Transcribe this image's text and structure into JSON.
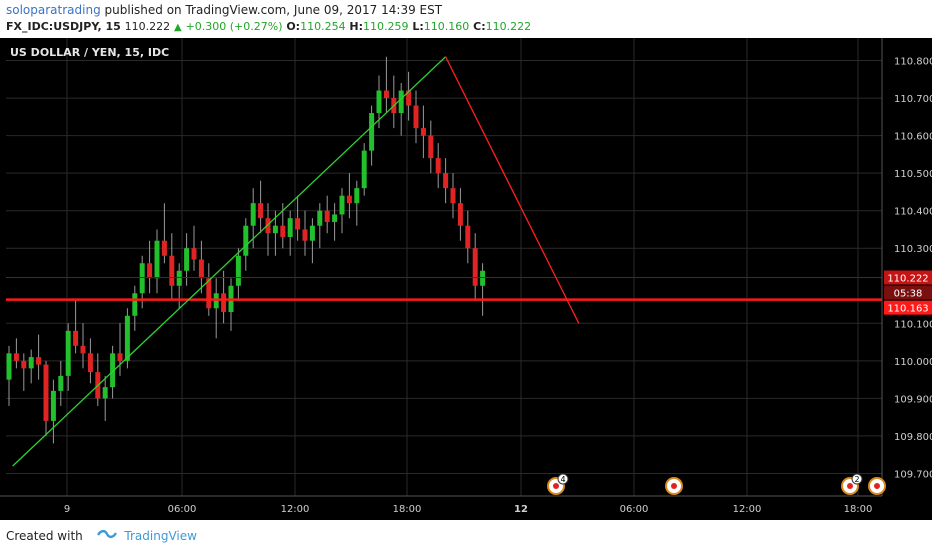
{
  "header": {
    "author": "soloparatrading",
    "published_text": " published on TradingView.com, June 09, 2017 14:39 EST",
    "symbol": "FX_IDC:USDJPY, 15",
    "last": "110.222",
    "change": "+0.300 (+0.27%)",
    "o_label": "O:",
    "o_value": "110.254",
    "h_label": "H:",
    "h_value": "110.259",
    "l_label": "L:",
    "l_value": "110.160",
    "c_label": "C:",
    "c_value": "110.222"
  },
  "chart_title": "US DOLLAR / YEN, 15, IDC",
  "price_axis": [
    "110.800",
    "110.700",
    "110.600",
    "110.500",
    "110.400",
    "110.300",
    "110.100",
    "110.000",
    "109.900",
    "109.800",
    "109.700"
  ],
  "time_axis": [
    "9",
    "06:00",
    "12:00",
    "18:00",
    "12",
    "06:00",
    "12:00",
    "18:00"
  ],
  "price_tags": {
    "last_price": "110.222",
    "countdown": "05:38",
    "hline_price": "110.163"
  },
  "events": {
    "e1_count": "4",
    "e4_count": "2"
  },
  "footer": {
    "created_with": "Created with",
    "brand": "TradingView"
  },
  "colors": {
    "up": "#22c02c",
    "down": "#e02424",
    "hline": "#ff1a1a",
    "background": "#000000",
    "grid": "#2a2a2a"
  },
  "chart_data": {
    "type": "candlestick",
    "symbol": "FX_IDC:USDJPY",
    "interval": "15",
    "ylim": [
      109.64,
      110.86
    ],
    "horizontal_line": 110.163,
    "drawings": [
      {
        "type": "trendline",
        "color": "green",
        "from": [
          0.5,
          109.72
        ],
        "to": [
          59,
          110.81
        ]
      },
      {
        "type": "trendline",
        "color": "red",
        "from": [
          59,
          110.81
        ],
        "to": [
          77,
          110.1
        ]
      }
    ],
    "candles": [
      [
        109.95,
        110.04,
        109.88,
        110.02
      ],
      [
        110.02,
        110.06,
        109.98,
        110.0
      ],
      [
        110.0,
        110.02,
        109.92,
        109.98
      ],
      [
        109.98,
        110.03,
        109.94,
        110.01
      ],
      [
        110.01,
        110.07,
        109.95,
        109.99
      ],
      [
        109.99,
        110.0,
        109.8,
        109.84
      ],
      [
        109.84,
        109.95,
        109.78,
        109.92
      ],
      [
        109.92,
        110.0,
        109.88,
        109.96
      ],
      [
        109.96,
        110.1,
        109.92,
        110.08
      ],
      [
        110.08,
        110.16,
        110.02,
        110.04
      ],
      [
        110.04,
        110.1,
        109.98,
        110.02
      ],
      [
        110.02,
        110.06,
        109.94,
        109.97
      ],
      [
        109.97,
        110.02,
        109.88,
        109.9
      ],
      [
        109.9,
        109.96,
        109.84,
        109.93
      ],
      [
        109.93,
        110.04,
        109.9,
        110.02
      ],
      [
        110.02,
        110.1,
        109.96,
        110.0
      ],
      [
        110.0,
        110.14,
        109.98,
        110.12
      ],
      [
        110.12,
        110.2,
        110.08,
        110.18
      ],
      [
        110.18,
        110.28,
        110.14,
        110.26
      ],
      [
        110.26,
        110.32,
        110.18,
        110.22
      ],
      [
        110.22,
        110.35,
        110.18,
        110.32
      ],
      [
        110.32,
        110.42,
        110.26,
        110.28
      ],
      [
        110.28,
        110.34,
        110.16,
        110.2
      ],
      [
        110.2,
        110.26,
        110.14,
        110.24
      ],
      [
        110.24,
        110.34,
        110.2,
        110.3
      ],
      [
        110.3,
        110.36,
        110.24,
        110.27
      ],
      [
        110.27,
        110.32,
        110.18,
        110.22
      ],
      [
        110.22,
        110.26,
        110.12,
        110.14
      ],
      [
        110.14,
        110.22,
        110.06,
        110.18
      ],
      [
        110.18,
        110.24,
        110.1,
        110.13
      ],
      [
        110.13,
        110.22,
        110.08,
        110.2
      ],
      [
        110.2,
        110.3,
        110.16,
        110.28
      ],
      [
        110.28,
        110.38,
        110.24,
        110.36
      ],
      [
        110.36,
        110.46,
        110.3,
        110.42
      ],
      [
        110.42,
        110.48,
        110.34,
        110.38
      ],
      [
        110.38,
        110.42,
        110.28,
        110.34
      ],
      [
        110.34,
        110.4,
        110.28,
        110.36
      ],
      [
        110.36,
        110.42,
        110.3,
        110.33
      ],
      [
        110.33,
        110.4,
        110.28,
        110.38
      ],
      [
        110.38,
        110.44,
        110.32,
        110.35
      ],
      [
        110.35,
        110.4,
        110.28,
        110.32
      ],
      [
        110.32,
        110.38,
        110.26,
        110.36
      ],
      [
        110.36,
        110.42,
        110.3,
        110.4
      ],
      [
        110.4,
        110.44,
        110.34,
        110.37
      ],
      [
        110.37,
        110.42,
        110.32,
        110.39
      ],
      [
        110.39,
        110.46,
        110.34,
        110.44
      ],
      [
        110.44,
        110.5,
        110.38,
        110.42
      ],
      [
        110.42,
        110.48,
        110.36,
        110.46
      ],
      [
        110.46,
        110.58,
        110.44,
        110.56
      ],
      [
        110.56,
        110.68,
        110.52,
        110.66
      ],
      [
        110.66,
        110.76,
        110.62,
        110.72
      ],
      [
        110.72,
        110.81,
        110.66,
        110.7
      ],
      [
        110.7,
        110.76,
        110.62,
        110.66
      ],
      [
        110.66,
        110.74,
        110.6,
        110.72
      ],
      [
        110.72,
        110.77,
        110.64,
        110.68
      ],
      [
        110.68,
        110.72,
        110.58,
        110.62
      ],
      [
        110.62,
        110.68,
        110.54,
        110.6
      ],
      [
        110.6,
        110.64,
        110.5,
        110.54
      ],
      [
        110.54,
        110.58,
        110.46,
        110.5
      ],
      [
        110.5,
        110.54,
        110.42,
        110.46
      ],
      [
        110.46,
        110.5,
        110.38,
        110.42
      ],
      [
        110.42,
        110.46,
        110.32,
        110.36
      ],
      [
        110.36,
        110.4,
        110.26,
        110.3
      ],
      [
        110.3,
        110.34,
        110.16,
        110.2
      ],
      [
        110.2,
        110.26,
        110.12,
        110.24
      ]
    ]
  }
}
